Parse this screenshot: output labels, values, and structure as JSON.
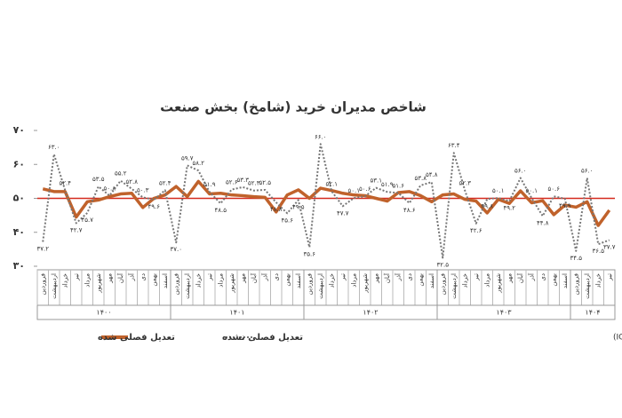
{
  "chart_data": {
    "type": "line",
    "title": "شاخص مدیران خرید (شامخ) بخش صنعت",
    "categories": [
      "فروردین",
      "اردیبهشت",
      "خرداد",
      "تیر",
      "مرداد",
      "شهریور",
      "مهر",
      "آبان",
      "آذر",
      "دی",
      "بهمن",
      "اسفند",
      "فروردین",
      "اردیبهشت",
      "خرداد",
      "تیر",
      "مرداد",
      "شهریور",
      "مهر",
      "آبان",
      "آذر",
      "دی",
      "بهمن",
      "اسفند",
      "فروردین",
      "اردیبهشت",
      "خرداد",
      "تیر",
      "مرداد",
      "شهریور",
      "مهر",
      "آبان",
      "آذر",
      "دی",
      "بهمن",
      "اسفند",
      "فروردین",
      "اردیبهشت",
      "خرداد",
      "تیر",
      "مرداد",
      "شهریور",
      "مهر",
      "آبان",
      "آذر",
      "دی",
      "بهمن",
      "اسفند",
      "فروردین",
      "اردیبهشت",
      "خرداد",
      "تیر"
    ],
    "years": [
      "۱۴۰۰",
      "۱۴۰۱",
      "۱۴۰۲",
      "۱۴۰۳",
      "۱۴۰۴"
    ],
    "series": [
      {
        "name": "تعدیل فصلی شده",
        "color": "#c0622b",
        "values": [
          52.8,
          52.0,
          52.0,
          44.5,
          49.0,
          49.5,
          50.5,
          51.3,
          51.5,
          47.3,
          50.0,
          51.0,
          53.5,
          50.5,
          55.0,
          51.3,
          51.5,
          51.0,
          50.8,
          50.5,
          50.3,
          46.0,
          51.0,
          52.5,
          50.0,
          53.0,
          52.3,
          51.5,
          51.0,
          50.8,
          50.0,
          49.2,
          51.7,
          52.0,
          50.8,
          49.0,
          51.0,
          51.3,
          49.7,
          49.2,
          45.7,
          49.7,
          48.5,
          52.2,
          48.7,
          49.3,
          45.2,
          48.0,
          47.4,
          49.0,
          42.0,
          46.5
        ]
      },
      {
        "name": "تعدیل فصلی نشده",
        "color": "#777777",
        "values": [
          37.2,
          63.0,
          52.4,
          42.7,
          45.7,
          53.5,
          50.8,
          55.2,
          52.8,
          50.3,
          49.6,
          52.4,
          37.0,
          59.7,
          58.2,
          51.9,
          48.5,
          52.6,
          53.3,
          52.3,
          52.5,
          48.8,
          45.6,
          49.5,
          35.6,
          66.0,
          52.1,
          47.7,
          50.1,
          50.6,
          53.1,
          51.9,
          51.6,
          48.6,
          53.8,
          54.8,
          32.5,
          63.4,
          52.3,
          42.6,
          49.8,
          50.1,
          49.2,
          56.0,
          50.1,
          44.8,
          50.6,
          49.9,
          34.5,
          56.0,
          36.5,
          37.7
        ],
        "value_labels": [
          "۳۷.۲",
          "۶۳.۰",
          "۵۲.۴",
          "۴۲.۷",
          "۴۵.۷",
          "۵۳.۵",
          "۵۰.۸",
          "۵۵.۲",
          "۵۲.۸",
          "۵۰.۳",
          "۴۹.۶",
          "۵۲.۴",
          "۳۷.۰",
          "۵۹.۷",
          "۵۸.۲",
          "۵۱.۹",
          "۴۸.۵",
          "۵۲.۶",
          "۵۳.۳",
          "۵۲.۳",
          "۵۲.۵",
          "۴۸.۸",
          "۴۵.۶",
          "۴۹.۵",
          "۳۵.۶",
          "۶۶.۰",
          "۵۲.۱",
          "۴۷.۷",
          "۵۰.۱",
          "۵۰.۶",
          "۵۳.۱",
          "۵۱.۹",
          "۵۱.۶",
          "۴۸.۶",
          "۵۳.۸",
          "۵۴.۸",
          "۳۲.۵",
          "۶۳.۴",
          "۵۲.۳",
          "۴۲.۶",
          "۴۹.۸",
          "۵۰.۱",
          "۴۹.۲",
          "۵۶.۰",
          "۵۰.۱",
          "۴۴.۸",
          "۵۰.۶",
          "۴۹.۹",
          "۳۴.۵",
          "۵۶.۰",
          "۳۶.۵",
          "۳۷.۷"
        ]
      }
    ],
    "reference_line": 50,
    "reference_color": "#d42a1e",
    "ylim": [
      30,
      70
    ],
    "yticks": [
      {
        "value": 30,
        "label": "۳۰"
      },
      {
        "value": 40,
        "label": "۴۰"
      },
      {
        "value": 50,
        "label": "۵۰"
      },
      {
        "value": 60,
        "label": "۶۰"
      },
      {
        "value": 70,
        "label": "۷۰"
      }
    ],
    "source": "منبع: اتاق بازرگانی، صنایع، معادن و کشاورزی ایران (ICCIMA)"
  }
}
